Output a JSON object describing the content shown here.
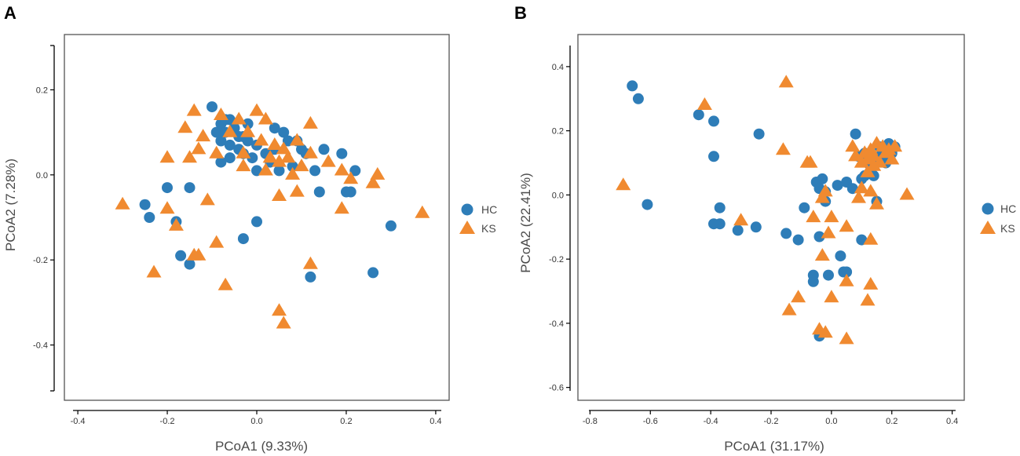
{
  "colors": {
    "HC": "#2e7db8",
    "KS": "#f08a30",
    "frame": "#555555"
  },
  "chart_data": [
    {
      "panel": "A",
      "type": "scatter",
      "xlabel": "PCoA1 (9.33%)",
      "ylabel": "PCoA2 (7.28%)",
      "xlim": [
        -0.43,
        0.43
      ],
      "ylim": [
        -0.53,
        0.33
      ],
      "xaxis_range": [
        -0.4,
        0.4
      ],
      "yaxis_range": [
        -0.5,
        0.3
      ],
      "xticks": [
        -0.4,
        -0.2,
        0.0,
        0.2,
        0.4
      ],
      "xtick_labels": [
        "-0.4",
        "-0.2",
        "0.0",
        "0.2",
        "0.4"
      ],
      "yticks": [
        0.2,
        0.0,
        -0.2,
        -0.4
      ],
      "ytick_labels": [
        "0.2",
        "0.0",
        "-0.2",
        "-0.4"
      ],
      "legend": [
        "HC",
        "KS"
      ],
      "series": [
        {
          "name": "HC",
          "marker": "circle",
          "points": [
            [
              -0.1,
              0.16
            ],
            [
              -0.09,
              0.1
            ],
            [
              -0.08,
              0.12
            ],
            [
              -0.07,
              0.1
            ],
            [
              -0.06,
              0.13
            ],
            [
              -0.05,
              0.11
            ],
            [
              -0.04,
              0.09
            ],
            [
              -0.03,
              0.09
            ],
            [
              -0.02,
              0.12
            ],
            [
              -0.08,
              0.08
            ],
            [
              -0.06,
              0.07
            ],
            [
              -0.04,
              0.06
            ],
            [
              -0.02,
              0.08
            ],
            [
              0.0,
              0.07
            ],
            [
              0.02,
              0.05
            ],
            [
              0.04,
              0.06
            ],
            [
              0.06,
              0.1
            ],
            [
              0.07,
              0.08
            ],
            [
              0.1,
              0.06
            ],
            [
              -0.03,
              0.05
            ],
            [
              -0.01,
              0.04
            ],
            [
              0.03,
              0.03
            ],
            [
              0.08,
              0.02
            ],
            [
              0.11,
              0.05
            ],
            [
              0.13,
              0.01
            ],
            [
              0.15,
              0.06
            ],
            [
              0.19,
              0.05
            ],
            [
              0.22,
              0.01
            ],
            [
              0.0,
              0.01
            ],
            [
              0.05,
              0.01
            ],
            [
              -0.08,
              0.03
            ],
            [
              -0.06,
              0.04
            ],
            [
              0.14,
              -0.04
            ],
            [
              0.2,
              -0.04
            ],
            [
              0.21,
              -0.04
            ],
            [
              0.09,
              0.08
            ],
            [
              -0.25,
              -0.07
            ],
            [
              -0.24,
              -0.1
            ],
            [
              -0.2,
              -0.03
            ],
            [
              -0.15,
              -0.03
            ],
            [
              -0.18,
              -0.11
            ],
            [
              -0.17,
              -0.19
            ],
            [
              -0.15,
              -0.21
            ],
            [
              -0.03,
              -0.15
            ],
            [
              0.0,
              -0.11
            ],
            [
              0.12,
              -0.24
            ],
            [
              0.26,
              -0.23
            ],
            [
              0.3,
              -0.12
            ],
            [
              0.04,
              0.11
            ],
            [
              -0.07,
              0.13
            ]
          ]
        },
        {
          "name": "KS",
          "marker": "triangle",
          "points": [
            [
              -0.14,
              0.15
            ],
            [
              -0.08,
              0.14
            ],
            [
              -0.04,
              0.13
            ],
            [
              0.0,
              0.15
            ],
            [
              0.02,
              0.13
            ],
            [
              0.12,
              0.12
            ],
            [
              -0.16,
              0.11
            ],
            [
              -0.12,
              0.09
            ],
            [
              -0.06,
              0.1
            ],
            [
              -0.02,
              0.1
            ],
            [
              0.01,
              0.08
            ],
            [
              0.04,
              0.07
            ],
            [
              0.06,
              0.06
            ],
            [
              0.09,
              0.08
            ],
            [
              -0.13,
              0.06
            ],
            [
              -0.09,
              0.05
            ],
            [
              -0.03,
              0.05
            ],
            [
              0.03,
              0.04
            ],
            [
              0.07,
              0.04
            ],
            [
              0.1,
              0.02
            ],
            [
              0.12,
              0.05
            ],
            [
              0.16,
              0.03
            ],
            [
              -0.2,
              0.04
            ],
            [
              -0.15,
              0.04
            ],
            [
              -0.03,
              0.02
            ],
            [
              0.02,
              0.01
            ],
            [
              0.05,
              0.03
            ],
            [
              0.08,
              0.0
            ],
            [
              0.19,
              0.01
            ],
            [
              0.21,
              -0.01
            ],
            [
              0.27,
              0.0
            ],
            [
              0.26,
              -0.02
            ],
            [
              0.19,
              -0.08
            ],
            [
              0.37,
              -0.09
            ],
            [
              -0.3,
              -0.07
            ],
            [
              -0.2,
              -0.08
            ],
            [
              -0.18,
              -0.12
            ],
            [
              -0.11,
              -0.06
            ],
            [
              0.09,
              -0.04
            ],
            [
              0.05,
              -0.05
            ],
            [
              -0.23,
              -0.23
            ],
            [
              -0.14,
              -0.19
            ],
            [
              -0.13,
              -0.19
            ],
            [
              -0.09,
              -0.16
            ],
            [
              -0.07,
              -0.26
            ],
            [
              0.12,
              -0.21
            ],
            [
              0.05,
              -0.32
            ],
            [
              0.06,
              -0.35
            ]
          ]
        }
      ]
    },
    {
      "panel": "B",
      "type": "scatter",
      "xlabel": "PCoA1 (31.17%)",
      "ylabel": "PCoA2 (22.41%)",
      "xlim": [
        -0.84,
        0.44
      ],
      "ylim": [
        -0.64,
        0.5
      ],
      "xaxis_range": [
        -0.8,
        0.4
      ],
      "yaxis_range": [
        -0.6,
        0.5
      ],
      "xticks": [
        -0.8,
        -0.6,
        -0.4,
        -0.2,
        0.0,
        0.2,
        0.4
      ],
      "xtick_labels": [
        "-0.8",
        "-0.6",
        "-0.4",
        "-0.2",
        "0.0",
        "0.2",
        "0.4"
      ],
      "yticks": [
        0.4,
        0.2,
        0.0,
        -0.2,
        -0.4,
        -0.6
      ],
      "ytick_labels": [
        "0.4",
        "0.2",
        "0.0",
        "-0.2",
        "-0.4",
        "-0.6"
      ],
      "legend": [
        "HC",
        "KS"
      ],
      "series": [
        {
          "name": "HC",
          "marker": "circle",
          "points": [
            [
              -0.66,
              0.34
            ],
            [
              -0.64,
              0.3
            ],
            [
              -0.44,
              0.25
            ],
            [
              -0.39,
              0.23
            ],
            [
              -0.39,
              0.12
            ],
            [
              -0.24,
              0.19
            ],
            [
              -0.61,
              -0.03
            ],
            [
              -0.37,
              -0.04
            ],
            [
              -0.39,
              -0.09
            ],
            [
              -0.37,
              -0.09
            ],
            [
              -0.31,
              -0.11
            ],
            [
              -0.25,
              -0.1
            ],
            [
              -0.15,
              -0.12
            ],
            [
              -0.11,
              -0.14
            ],
            [
              -0.09,
              -0.04
            ],
            [
              -0.05,
              0.04
            ],
            [
              -0.03,
              0.05
            ],
            [
              -0.04,
              0.02
            ],
            [
              -0.02,
              0.01
            ],
            [
              -0.02,
              -0.02
            ],
            [
              0.02,
              0.03
            ],
            [
              0.05,
              0.04
            ],
            [
              0.07,
              0.02
            ],
            [
              -0.04,
              -0.13
            ],
            [
              0.03,
              -0.19
            ],
            [
              0.04,
              -0.24
            ],
            [
              0.05,
              -0.24
            ],
            [
              -0.06,
              -0.25
            ],
            [
              -0.06,
              -0.27
            ],
            [
              -0.01,
              -0.25
            ],
            [
              0.1,
              -0.14
            ],
            [
              -0.04,
              -0.44
            ],
            [
              0.08,
              0.19
            ],
            [
              0.09,
              0.12
            ],
            [
              0.11,
              0.13
            ],
            [
              0.12,
              0.1
            ],
            [
              0.13,
              0.09
            ],
            [
              0.15,
              0.11
            ],
            [
              0.16,
              0.12
            ],
            [
              0.17,
              0.14
            ],
            [
              0.18,
              0.1
            ],
            [
              0.19,
              0.16
            ],
            [
              0.2,
              0.13
            ],
            [
              0.21,
              0.15
            ],
            [
              0.11,
              0.06
            ],
            [
              0.13,
              0.07
            ],
            [
              0.14,
              0.06
            ],
            [
              0.1,
              0.05
            ],
            [
              0.15,
              -0.02
            ],
            [
              0.18,
              0.11
            ],
            [
              0.12,
              0.12
            ],
            [
              0.16,
              0.15
            ]
          ]
        },
        {
          "name": "KS",
          "marker": "triangle",
          "points": [
            [
              -0.42,
              0.28
            ],
            [
              -0.15,
              0.35
            ],
            [
              -0.69,
              0.03
            ],
            [
              -0.3,
              -0.08
            ],
            [
              -0.16,
              0.14
            ],
            [
              -0.08,
              0.1
            ],
            [
              -0.07,
              0.1
            ],
            [
              -0.06,
              -0.07
            ],
            [
              -0.03,
              -0.01
            ],
            [
              -0.02,
              0.01
            ],
            [
              0.0,
              -0.07
            ],
            [
              -0.01,
              -0.12
            ],
            [
              0.05,
              -0.1
            ],
            [
              0.09,
              -0.01
            ],
            [
              0.1,
              0.02
            ],
            [
              0.13,
              0.01
            ],
            [
              0.15,
              -0.03
            ],
            [
              0.25,
              0.0
            ],
            [
              0.13,
              -0.14
            ],
            [
              0.07,
              0.15
            ],
            [
              0.08,
              0.12
            ],
            [
              0.1,
              0.1
            ],
            [
              0.11,
              0.13
            ],
            [
              0.12,
              0.11
            ],
            [
              0.13,
              0.14
            ],
            [
              0.14,
              0.12
            ],
            [
              0.15,
              0.16
            ],
            [
              0.16,
              0.1
            ],
            [
              0.17,
              0.15
            ],
            [
              0.18,
              0.13
            ],
            [
              0.19,
              0.14
            ],
            [
              0.2,
              0.11
            ],
            [
              0.21,
              0.15
            ],
            [
              0.14,
              0.09
            ],
            [
              0.12,
              0.07
            ],
            [
              -0.03,
              -0.19
            ],
            [
              0.0,
              -0.32
            ],
            [
              0.05,
              -0.27
            ],
            [
              0.13,
              -0.28
            ],
            [
              0.12,
              -0.33
            ],
            [
              -0.14,
              -0.36
            ],
            [
              -0.11,
              -0.32
            ],
            [
              -0.04,
              -0.42
            ],
            [
              -0.02,
              -0.43
            ],
            [
              0.05,
              -0.45
            ]
          ]
        }
      ]
    }
  ]
}
